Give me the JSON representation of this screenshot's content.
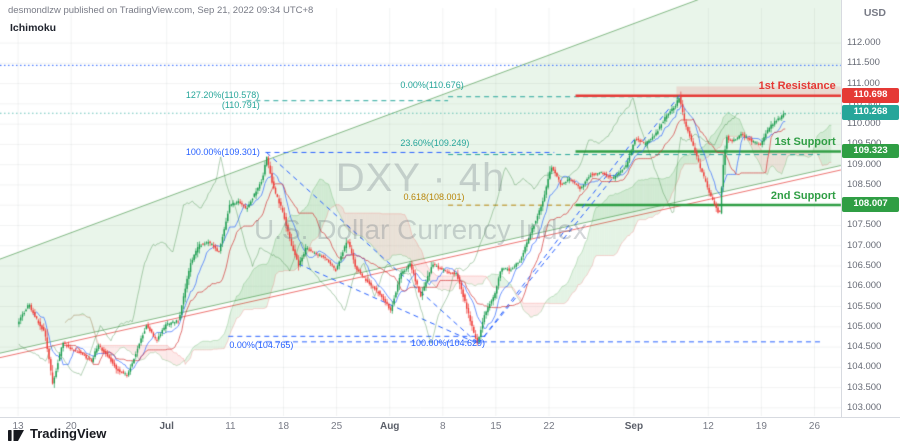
{
  "header": {
    "attribution": "desmondlzw published on TradingView.com, Sep 21, 2022 09:34 UTC+8",
    "indicator": "Ichimoku"
  },
  "axes": {
    "currency": "USD",
    "price_ticks": [
      "112.000",
      "111.500",
      "111.000",
      "110.500",
      "110.000",
      "109.500",
      "109.000",
      "108.500",
      "108.000",
      "107.500",
      "107.000",
      "106.500",
      "106.000",
      "105.500",
      "105.000",
      "104.500",
      "104.000",
      "103.500",
      "103.000"
    ],
    "time_ticks": [
      {
        "label": "13",
        "day": 0
      },
      {
        "label": "20",
        "day": 5
      },
      {
        "label": "Jul",
        "day": 14,
        "month": true
      },
      {
        "label": "11",
        "day": 20
      },
      {
        "label": "18",
        "day": 25
      },
      {
        "label": "25",
        "day": 30
      },
      {
        "label": "Aug",
        "day": 35,
        "month": true
      },
      {
        "label": "8",
        "day": 40
      },
      {
        "label": "15",
        "day": 45
      },
      {
        "label": "22",
        "day": 50
      },
      {
        "label": "Sep",
        "day": 58,
        "month": true
      },
      {
        "label": "12",
        "day": 65
      },
      {
        "label": "19",
        "day": 70
      },
      {
        "label": "26",
        "day": 75
      }
    ]
  },
  "watermark": {
    "line1": "DXY · 4h",
    "line2": "U.S. Dollar Currency Index"
  },
  "footer": {
    "brand": "TradingView"
  },
  "annotations": {
    "badges": [
      {
        "name": "resistance-badge",
        "text": "110.698",
        "price": 110.698,
        "color": "#e53935"
      },
      {
        "name": "last-price-badge",
        "text": "110.268",
        "price": 110.268,
        "color": "#26a69a"
      },
      {
        "name": "support1-badge",
        "text": "109.323",
        "price": 109.323,
        "color": "#2f9e44"
      },
      {
        "name": "support2-badge",
        "text": "108.007",
        "price": 108.007,
        "color": "#2f9e44"
      }
    ],
    "labels": [
      {
        "name": "fib-ext-label",
        "text": "127.20%(110.578)",
        "day": 15.8,
        "price": 110.71,
        "color": "#26a69a"
      },
      {
        "name": "fib-ext-label-2",
        "text": "(110.791)",
        "day": 19.2,
        "price": 110.47,
        "color": "#26a69a"
      },
      {
        "name": "fib-zero-top-label",
        "text": "0.00%(110.676)",
        "day": 36.0,
        "price": 110.97,
        "color": "#26a69a"
      },
      {
        "name": "fib-236-label",
        "text": "23.60%(109.249)",
        "day": 36.0,
        "price": 109.54,
        "color": "#26a69a"
      },
      {
        "name": "fib-100-top-label",
        "text": "100.00%(109.301)",
        "day": 15.8,
        "price": 109.31,
        "color": "#2962ff"
      },
      {
        "name": "fib-618-label",
        "text": "0.618(108.001)",
        "day": 36.3,
        "price": 108.2,
        "color": "#b8860b"
      },
      {
        "name": "fib-zero-bottom-label",
        "text": "0.00%(104.765)",
        "day": 19.9,
        "price": 104.55,
        "color": "#2962ff"
      },
      {
        "name": "fib-100-bottom-label",
        "text": "100.00%(104.629)",
        "day": 37.0,
        "price": 104.6,
        "color": "#2962ff"
      },
      {
        "name": "resistance-1-label",
        "text": "1st Resistance",
        "day": 77.0,
        "price": 110.93,
        "color": "#e53935",
        "bold": true,
        "align": "right"
      },
      {
        "name": "support-1-label",
        "text": "1st Support",
        "day": 77.0,
        "price": 109.55,
        "color": "#2f9e44",
        "bold": true,
        "align": "right"
      },
      {
        "name": "support-2-label",
        "text": "2nd Support",
        "day": 77.0,
        "price": 108.22,
        "color": "#2f9e44",
        "bold": true,
        "align": "right"
      }
    ],
    "levels": [
      {
        "price": 111.45,
        "d0": -1.7,
        "d1": 77.5,
        "color": "#2962ff",
        "style": "dotted",
        "width": 1
      },
      {
        "price": 110.676,
        "d0": 40.5,
        "d1": 62.5,
        "color": "#26a69a",
        "style": "dashed",
        "width": 1
      },
      {
        "price": 110.578,
        "d0": 21.5,
        "d1": 40.5,
        "color": "#26a69a",
        "style": "dashed",
        "width": 1
      },
      {
        "price": 109.249,
        "d0": 40.5,
        "d1": 75.5,
        "color": "#26a69a",
        "style": "dashed",
        "width": 1
      },
      {
        "price": 109.301,
        "d0": 23.3,
        "d1": 50.5,
        "color": "#2962ff",
        "style": "dashed",
        "width": 1
      },
      {
        "price": 108.001,
        "d0": 40.5,
        "d1": 52.5,
        "color": "#b8860b",
        "style": "dashed",
        "width": 1
      },
      {
        "price": 104.765,
        "d0": 19.8,
        "d1": 44,
        "color": "#2962ff",
        "style": "dashed",
        "width": 1
      },
      {
        "price": 104.629,
        "d0": 22.5,
        "d1": 75.7,
        "color": "#2962ff",
        "style": "dashed",
        "width": 1
      },
      {
        "price": 110.698,
        "d0": 52.5,
        "d1": 77.5,
        "color": "#e53935",
        "style": "solid",
        "width": 2.5
      },
      {
        "price": 109.323,
        "d0": 52.5,
        "d1": 77.5,
        "color": "#2f9e44",
        "style": "solid",
        "width": 2.5
      },
      {
        "price": 108.007,
        "d0": 52.5,
        "d1": 77.5,
        "color": "#2f9e44",
        "style": "solid",
        "width": 2.5
      }
    ],
    "trendlines": [
      {
        "from": [
          23.4,
          109.3
        ],
        "to": [
          43.35,
          104.58
        ],
        "color": "#2962ff"
      },
      {
        "from": [
          26.4,
          106.55
        ],
        "to": [
          43.35,
          104.58
        ],
        "color": "#2962ff"
      },
      {
        "from": [
          43.35,
          104.58
        ],
        "to": [
          62.35,
          110.72
        ],
        "color": "#2962ff"
      },
      {
        "from": [
          43.35,
          104.58
        ],
        "to": [
          58.2,
          109.68
        ],
        "color": "#2962ff"
      }
    ],
    "channel": {
      "upper": [
        [
          -1.7,
          106.67
        ],
        [
          77.5,
          114.38
        ]
      ],
      "lower": [
        [
          -1.7,
          104.35
        ],
        [
          77.5,
          108.98
        ]
      ],
      "accent": [
        [
          -1.7,
          104.24
        ],
        [
          77.5,
          108.87
        ]
      ],
      "fill": "rgba(76,175,80,0.12)"
    },
    "zones": [
      {
        "d0": 62,
        "d1": 77.5,
        "p0": 110.698,
        "p1": 110.93,
        "color": "rgba(239,83,80,0.16)"
      }
    ]
  },
  "chart_data": {
    "type": "candlestick",
    "symbol": "DXY",
    "timeframe": "4h",
    "description": "U.S. Dollar Currency Index",
    "last_price": 110.268,
    "ylim": [
      102.8,
      112.47
    ],
    "xlim_days": [
      -1.7,
      77.5
    ],
    "bars_per_day": 6,
    "total_days": 72.33,
    "up_color": "#1d9d50",
    "down_color": "#ef403c",
    "ichimoku": {
      "tenkan": 9,
      "kijun": 26,
      "senkou_b": 52,
      "displacement": 26
    },
    "waypoints": [
      [
        -0.3,
        104.95
      ],
      [
        0.5,
        105.3
      ],
      [
        1.1,
        105.55
      ],
      [
        1.9,
        105.15
      ],
      [
        2.6,
        104.85
      ],
      [
        3.0,
        104.2
      ],
      [
        3.35,
        103.55
      ],
      [
        3.8,
        104.1
      ],
      [
        4.3,
        104.6
      ],
      [
        5.2,
        104.45
      ],
      [
        6.2,
        104.3
      ],
      [
        7.0,
        104.15
      ],
      [
        7.6,
        104.55
      ],
      [
        8.5,
        104.3
      ],
      [
        9.4,
        103.95
      ],
      [
        10.4,
        103.8
      ],
      [
        11.3,
        104.45
      ],
      [
        12.2,
        105.05
      ],
      [
        13.1,
        104.65
      ],
      [
        14.0,
        105.05
      ],
      [
        15.2,
        105.15
      ],
      [
        16.3,
        106.55
      ],
      [
        17.1,
        107.0
      ],
      [
        18.0,
        107.1
      ],
      [
        19.0,
        106.85
      ],
      [
        20.0,
        108.0
      ],
      [
        20.8,
        108.1
      ],
      [
        21.6,
        107.9
      ],
      [
        22.4,
        108.3
      ],
      [
        23.1,
        108.65
      ],
      [
        23.5,
        109.2
      ],
      [
        24.1,
        108.45
      ],
      [
        25.0,
        107.85
      ],
      [
        25.8,
        107.05
      ],
      [
        26.5,
        106.5
      ],
      [
        27.2,
        106.95
      ],
      [
        28.1,
        106.8
      ],
      [
        29.0,
        106.7
      ],
      [
        30.0,
        106.4
      ],
      [
        31.1,
        107.15
      ],
      [
        31.9,
        106.45
      ],
      [
        33.0,
        106.1
      ],
      [
        34.0,
        105.85
      ],
      [
        35.2,
        105.4
      ],
      [
        36.1,
        106.3
      ],
      [
        37.0,
        106.55
      ],
      [
        38.0,
        105.75
      ],
      [
        39.1,
        106.55
      ],
      [
        40.0,
        106.4
      ],
      [
        41.4,
        106.3
      ],
      [
        42.3,
        105.5
      ],
      [
        43.0,
        104.85
      ],
      [
        43.35,
        104.6
      ],
      [
        44.0,
        105.3
      ],
      [
        44.9,
        105.75
      ],
      [
        45.6,
        106.45
      ],
      [
        46.5,
        106.4
      ],
      [
        47.4,
        106.65
      ],
      [
        48.4,
        107.35
      ],
      [
        49.4,
        108.0
      ],
      [
        50.3,
        108.95
      ],
      [
        51.2,
        108.5
      ],
      [
        52.1,
        108.65
      ],
      [
        53.0,
        108.4
      ],
      [
        54.0,
        108.75
      ],
      [
        55.1,
        108.8
      ],
      [
        56.1,
        108.65
      ],
      [
        57.3,
        108.95
      ],
      [
        58.2,
        109.65
      ],
      [
        59.1,
        109.5
      ],
      [
        60.1,
        109.75
      ],
      [
        61.1,
        110.2
      ],
      [
        62.0,
        110.45
      ],
      [
        62.35,
        110.68
      ],
      [
        62.8,
        110.1
      ],
      [
        63.4,
        109.65
      ],
      [
        64.3,
        108.95
      ],
      [
        65.2,
        108.3
      ],
      [
        65.8,
        107.95
      ],
      [
        66.15,
        107.75
      ],
      [
        66.45,
        108.9
      ],
      [
        66.8,
        109.7
      ],
      [
        67.3,
        109.55
      ],
      [
        68.2,
        109.75
      ],
      [
        69.1,
        109.6
      ],
      [
        70.0,
        109.5
      ],
      [
        70.9,
        109.95
      ],
      [
        71.6,
        110.1
      ],
      [
        72.3,
        110.27
      ]
    ]
  }
}
